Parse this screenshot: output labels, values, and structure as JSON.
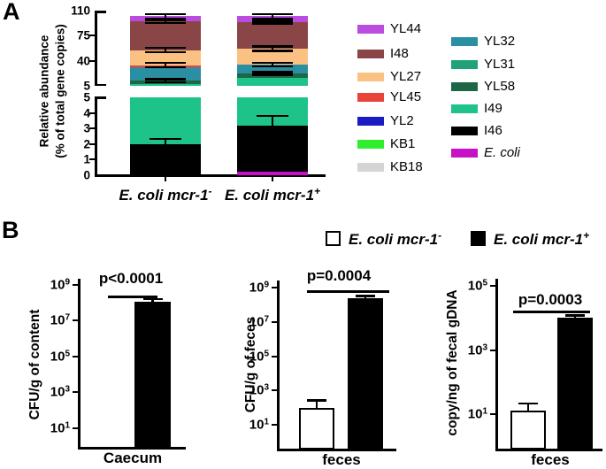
{
  "figure": {
    "panel_a_label": "A",
    "panel_b_label": "B"
  },
  "panels": {
    "a": {
      "ylabel_line1": "Relative abundance",
      "ylabel_line2": "(% of total gene copies)",
      "categories": [
        {
          "base": "E. coli mcr-1",
          "sup": "-"
        },
        {
          "base": "E. coli mcr-1",
          "sup": "+"
        }
      ],
      "legend": {
        "col1": [
          {
            "label": "YL44",
            "color": "#bb4ce0"
          },
          {
            "label": "I48",
            "color": "#8a4646"
          },
          {
            "label": "YL27",
            "color": "#fbc183"
          },
          {
            "label": "YL45",
            "color": "#e8443c"
          },
          {
            "label": "YL2",
            "color": "#1c1cc4"
          },
          {
            "label": "KB1",
            "color": "#2eee2e"
          },
          {
            "label": "KB18",
            "color": "#d4d4d4"
          }
        ],
        "col2": [
          {
            "label": "YL32",
            "color": "#2b8fa3"
          },
          {
            "label": "YL31",
            "color": "#21a179"
          },
          {
            "label": "YL58",
            "color": "#1d6747"
          },
          {
            "label": "I49",
            "color": "#1ec389"
          },
          {
            "label": "I46",
            "color": "#000000"
          },
          {
            "label": "E. coli",
            "color": "#c611c6",
            "italic": true
          }
        ]
      }
    },
    "b": {
      "legend": [
        {
          "base": "E. coli mcr-1",
          "sup": "-",
          "fill": "#ffffff"
        },
        {
          "base": "E. coli mcr-1",
          "sup": "+",
          "fill": "#000000"
        }
      ]
    }
  },
  "chart_data": [
    {
      "id": "a-stacked",
      "type": "bar",
      "stacked": true,
      "ylabel": "Relative abundance (% of total gene copies)",
      "axis_break": {
        "lower_range": [
          0,
          5
        ],
        "upper_range": [
          5,
          110
        ]
      },
      "upper_ticks": [
        110,
        75,
        40,
        5
      ],
      "lower_ticks": [
        5,
        4,
        3,
        2,
        1,
        0
      ],
      "categories": [
        "E. coli mcr-1-",
        "E. coli mcr-1+"
      ],
      "series": [
        {
          "name": "E. coli",
          "color": "#c611c6",
          "values": [
            0,
            0.25
          ]
        },
        {
          "name": "I46",
          "color": "#000000",
          "values": [
            2.0,
            2.95
          ]
        },
        {
          "name": "I49",
          "color": "#1ec389",
          "values": [
            5.0,
            13.3
          ]
        },
        {
          "name": "YL58",
          "color": "#1d6747",
          "values": [
            5.3,
            6.0
          ]
        },
        {
          "name": "YL32",
          "color": "#2b8fa3",
          "values": [
            19.2,
            12.5
          ]
        },
        {
          "name": "YL45",
          "color": "#e8443c",
          "values": [
            2.5,
            0
          ]
        },
        {
          "name": "YL27",
          "color": "#fbc183",
          "values": [
            21,
            22
          ]
        },
        {
          "name": "I48",
          "color": "#8a4646",
          "values": [
            40,
            37
          ]
        },
        {
          "name": "YL44",
          "color": "#bb4ce0",
          "values": [
            7,
            8.3
          ]
        }
      ],
      "error_bars": [
        {
          "bar": 0,
          "at": 102,
          "plus": 3,
          "sym": true
        },
        {
          "bar": 0,
          "at": 95,
          "plus": 2,
          "sym": true
        },
        {
          "bar": 0,
          "at": 55,
          "plus": 3,
          "sym": true
        },
        {
          "bar": 0,
          "at": 34,
          "plus": 3,
          "sym": true
        },
        {
          "bar": 0,
          "at": 12.3,
          "plus": 2,
          "sym": true
        },
        {
          "bar": 0,
          "at": 2.0,
          "plus": 0.35,
          "sym": false
        },
        {
          "bar": 1,
          "at": 102.3,
          "plus": 3,
          "sym": true
        },
        {
          "bar": 1,
          "at": 94,
          "plus": 2,
          "sym": true
        },
        {
          "bar": 1,
          "at": 57,
          "plus": 3,
          "sym": true
        },
        {
          "bar": 1,
          "at": 35,
          "plus": 2.5,
          "sym": true
        },
        {
          "bar": 1,
          "at": 22.5,
          "plus": 2,
          "sym": true
        },
        {
          "bar": 1,
          "at": 3.2,
          "plus": 0.6,
          "sym": false
        }
      ]
    },
    {
      "id": "b-caecum",
      "type": "bar",
      "log_scale": true,
      "ylabel": "CFU/g of content",
      "xlabel": "Caecum",
      "p_label": "p<0.0001",
      "tick_exponents": [
        9,
        7,
        5,
        3,
        1
      ],
      "series": [
        {
          "name": "E. coli mcr-1-",
          "fill": "#ffffff",
          "value": null,
          "error_hi": null
        },
        {
          "name": "E. coli mcr-1+",
          "fill": "#000000",
          "value": 120000000.0,
          "error_hi": 160000000.0
        }
      ]
    },
    {
      "id": "b-feces-cfu",
      "type": "bar",
      "log_scale": true,
      "ylabel": "CFU/g of feces",
      "xlabel": "feces",
      "p_label": "p=0.0004",
      "tick_exponents": [
        9,
        7,
        5,
        3,
        1
      ],
      "series": [
        {
          "name": "E. coli mcr-1-",
          "fill": "#ffffff",
          "value": 100,
          "error_hi": 270
        },
        {
          "name": "E. coli mcr-1+",
          "fill": "#000000",
          "value": 250000000.0,
          "error_hi": 330000000.0
        }
      ]
    },
    {
      "id": "b-feces-gdna",
      "type": "bar",
      "log_scale": true,
      "ylabel": "copy/ng of fecal gDNA",
      "xlabel": "feces",
      "p_label": "p=0.0003",
      "tick_exponents": [
        5,
        3,
        1
      ],
      "series": [
        {
          "name": "E. coli mcr-1-",
          "fill": "#ffffff",
          "value": 13,
          "error_hi": 22
        },
        {
          "name": "E. coli mcr-1+",
          "fill": "#000000",
          "value": 10000.0,
          "error_hi": 12000.0
        }
      ]
    }
  ]
}
